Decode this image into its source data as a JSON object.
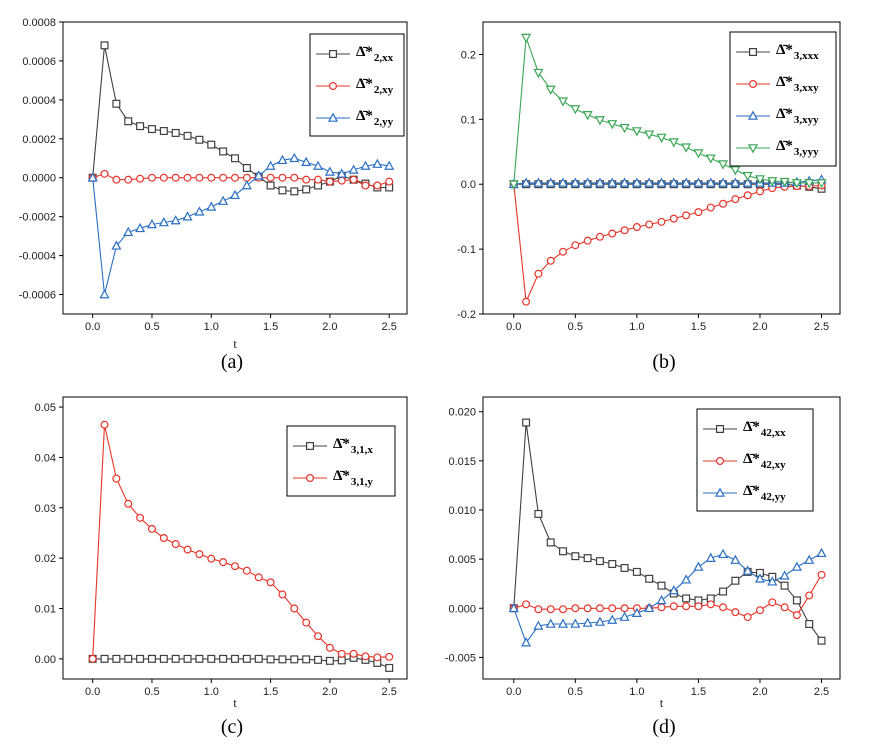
{
  "chart_data": [
    {
      "type": "line",
      "panel_label": "(a)",
      "xlabel": "t",
      "xlim": [
        -0.25,
        2.65
      ],
      "ylim": [
        -0.0007,
        0.0008
      ],
      "xticks": [
        "0.0",
        "0.5",
        "1.0",
        "1.5",
        "2.0",
        "2.5"
      ],
      "yticks": [
        "-0.0006",
        "-0.0004",
        "-0.0002",
        "0.0000",
        "0.0002",
        "0.0004",
        "0.0006",
        "0.0008"
      ],
      "ytick_values": [
        -0.0006,
        -0.0004,
        -0.0002,
        0,
        0.0002,
        0.0004,
        0.0006,
        0.0008
      ],
      "legend_position": "top-right",
      "x": [
        0,
        0.1,
        0.2,
        0.3,
        0.4,
        0.5,
        0.6,
        0.7,
        0.8,
        0.9,
        1.0,
        1.1,
        1.2,
        1.3,
        1.4,
        1.5,
        1.6,
        1.7,
        1.8,
        1.9,
        2.0,
        2.1,
        2.2,
        2.3,
        2.4,
        2.5
      ],
      "series": [
        {
          "name": "Δ̄*2,xx",
          "base": "Δ̄*",
          "sub": "2,xx",
          "color": "#404040",
          "marker": "square",
          "values": [
            0,
            0.00068,
            0.00038,
            0.00029,
            0.000265,
            0.00025,
            0.00024,
            0.00023,
            0.000215,
            0.000195,
            0.00017,
            0.000135,
            0.0001,
            5e-05,
            5e-06,
            -4e-05,
            -6.5e-05,
            -7e-05,
            -6e-05,
            -4e-05,
            -2e-05,
            1e-05,
            -1e-05,
            -3e-05,
            -5e-05,
            -5e-05
          ]
        },
        {
          "name": "Δ̄*2,xy",
          "base": "Δ̄*",
          "sub": "2,xy",
          "color": "#e8342a",
          "marker": "circle",
          "values": [
            0,
            2e-05,
            -1e-05,
            -1e-05,
            -5e-06,
            0,
            0,
            0,
            0,
            0,
            0,
            0,
            0,
            0,
            0,
            0,
            0,
            0,
            -1e-05,
            -1e-05,
            -2e-05,
            -1.5e-05,
            -1e-05,
            -4e-05,
            -4e-05,
            -2e-05
          ]
        },
        {
          "name": "Δ̄*2,yy",
          "base": "Δ̄*",
          "sub": "2,yy",
          "color": "#2a6fc4",
          "marker": "triangle",
          "values": [
            0,
            -0.0006,
            -0.00035,
            -0.00028,
            -0.00026,
            -0.00024,
            -0.00023,
            -0.00022,
            -0.0002,
            -0.000175,
            -0.00015,
            -0.00012,
            -9e-05,
            -4e-05,
            1e-05,
            6e-05,
            9e-05,
            0.0001,
            8e-05,
            6e-05,
            3e-05,
            2e-05,
            4e-05,
            6e-05,
            7e-05,
            6e-05
          ]
        }
      ]
    },
    {
      "type": "line",
      "panel_label": "(b)",
      "xlabel": "",
      "xlim": [
        -0.25,
        2.65
      ],
      "ylim": [
        -0.2,
        0.25
      ],
      "xticks": [
        "0.0",
        "0.5",
        "1.0",
        "1.5",
        "2.0",
        "2.5"
      ],
      "yticks": [
        "-0.2",
        "-0.1",
        "0.0",
        "0.1",
        "0.2"
      ],
      "ytick_values": [
        -0.2,
        -0.1,
        0,
        0.1,
        0.2
      ],
      "legend_position": "top-right",
      "x": [
        0,
        0.1,
        0.2,
        0.3,
        0.4,
        0.5,
        0.6,
        0.7,
        0.8,
        0.9,
        1.0,
        1.1,
        1.2,
        1.3,
        1.4,
        1.5,
        1.6,
        1.7,
        1.8,
        1.9,
        2.0,
        2.1,
        2.2,
        2.3,
        2.4,
        2.5
      ],
      "series": [
        {
          "name": "Δ̄*3,xxx",
          "base": "Δ̄*",
          "sub": "3,xxx",
          "color": "#404040",
          "marker": "square",
          "values": [
            0,
            0,
            0,
            0,
            0,
            0,
            0,
            0,
            0,
            0,
            0,
            0,
            0,
            0,
            0,
            0,
            0,
            0,
            0,
            0,
            0,
            0,
            0,
            -0.002,
            -0.004,
            -0.007
          ]
        },
        {
          "name": "Δ̄*3,xxy",
          "base": "Δ̄*",
          "sub": "3,xxy",
          "color": "#e8342a",
          "marker": "circle",
          "values": [
            0,
            -0.181,
            -0.138,
            -0.118,
            -0.104,
            -0.094,
            -0.087,
            -0.081,
            -0.076,
            -0.071,
            -0.066,
            -0.062,
            -0.058,
            -0.053,
            -0.048,
            -0.043,
            -0.036,
            -0.03,
            -0.023,
            -0.017,
            -0.011,
            -0.006,
            -0.004,
            -0.003,
            -0.003,
            -0.002
          ]
        },
        {
          "name": "Δ̄*3,xyy",
          "base": "Δ̄*",
          "sub": "3,xyy",
          "color": "#2a6fc4",
          "marker": "triangle",
          "values": [
            0,
            0.002,
            0.002,
            0.002,
            0.002,
            0.002,
            0.002,
            0.002,
            0.002,
            0.002,
            0.002,
            0.002,
            0.002,
            0.002,
            0.002,
            0.002,
            0.002,
            0.002,
            0.002,
            0.002,
            0.002,
            0.002,
            0.002,
            0.003,
            0.005,
            0.007
          ]
        },
        {
          "name": "Δ̄*3,yyy",
          "base": "Δ̄*",
          "sub": "3,yyy",
          "color": "#3aa655",
          "marker": "triangle-down",
          "values": [
            0,
            0.226,
            0.172,
            0.146,
            0.128,
            0.116,
            0.107,
            0.099,
            0.093,
            0.087,
            0.082,
            0.077,
            0.072,
            0.065,
            0.057,
            0.048,
            0.04,
            0.031,
            0.022,
            0.013,
            0.008,
            0.005,
            0.004,
            0.002,
            0.002,
            0.002
          ]
        }
      ]
    },
    {
      "type": "line",
      "panel_label": "(c)",
      "xlabel": "t",
      "xlim": [
        -0.25,
        2.65
      ],
      "ylim": [
        -0.004,
        0.052
      ],
      "xticks": [
        "0.0",
        "0.5",
        "1.0",
        "1.5",
        "2.0",
        "2.5"
      ],
      "yticks": [
        "0.00",
        "0.01",
        "0.02",
        "0.03",
        "0.04",
        "0.05"
      ],
      "ytick_values": [
        0,
        0.01,
        0.02,
        0.03,
        0.04,
        0.05
      ],
      "legend_position": "top-right",
      "x": [
        0,
        0.1,
        0.2,
        0.3,
        0.4,
        0.5,
        0.6,
        0.7,
        0.8,
        0.9,
        1.0,
        1.1,
        1.2,
        1.3,
        1.4,
        1.5,
        1.6,
        1.7,
        1.8,
        1.9,
        2.0,
        2.1,
        2.2,
        2.3,
        2.4,
        2.5
      ],
      "series": [
        {
          "name": "Δ̄*3,1,x",
          "base": "Δ̄*",
          "sub": "3,1,x",
          "color": "#404040",
          "marker": "square",
          "values": [
            0,
            0,
            0,
            0,
            0,
            0,
            0,
            0,
            0,
            0,
            0,
            0,
            0,
            0,
            0,
            -0.0001,
            -0.0001,
            -0.0001,
            -0.0001,
            -0.0002,
            -0.0004,
            -0.0003,
            0.0002,
            -0.0002,
            -0.0008,
            -0.0018
          ]
        },
        {
          "name": "Δ̄*3,1,y",
          "base": "Δ̄*",
          "sub": "3,1,y",
          "color": "#e8342a",
          "marker": "circle",
          "values": [
            0,
            0.0465,
            0.0358,
            0.0308,
            0.028,
            0.0258,
            0.024,
            0.0228,
            0.0217,
            0.0208,
            0.0199,
            0.0192,
            0.0184,
            0.0175,
            0.0162,
            0.0152,
            0.0128,
            0.01,
            0.0072,
            0.0045,
            0.0022,
            0.001,
            0.001,
            0.0005,
            0.0003,
            0.0004
          ]
        }
      ]
    },
    {
      "type": "line",
      "panel_label": "(d)",
      "xlabel": "t",
      "xlim": [
        -0.25,
        2.65
      ],
      "ylim": [
        -0.0072,
        0.0215
      ],
      "xticks": [
        "0.0",
        "0.5",
        "1.0",
        "1.5",
        "2.0",
        "2.5"
      ],
      "yticks": [
        "-0.005",
        "0.000",
        "0.005",
        "0.010",
        "0.015",
        "0.020"
      ],
      "ytick_values": [
        -0.005,
        0,
        0.005,
        0.01,
        0.015,
        0.02
      ],
      "legend_position": "top-right",
      "x": [
        0,
        0.1,
        0.2,
        0.3,
        0.4,
        0.5,
        0.6,
        0.7,
        0.8,
        0.9,
        1.0,
        1.1,
        1.2,
        1.3,
        1.4,
        1.5,
        1.6,
        1.7,
        1.8,
        1.9,
        2.0,
        2.1,
        2.2,
        2.3,
        2.4,
        2.5
      ],
      "series": [
        {
          "name": "Δ̄*42,xx",
          "base": "Δ̄*",
          "sub": "42,xx",
          "color": "#404040",
          "marker": "square",
          "values": [
            0,
            0.0189,
            0.0096,
            0.0067,
            0.0058,
            0.0053,
            0.0051,
            0.0048,
            0.0045,
            0.0041,
            0.0037,
            0.003,
            0.0023,
            0.0015,
            0.001,
            0.0008,
            0.001,
            0.0017,
            0.0028,
            0.0037,
            0.0036,
            0.0032,
            0.0023,
            0.0008,
            -0.0016,
            -0.0033
          ]
        },
        {
          "name": "Δ̄*42,xy",
          "base": "Δ̄*",
          "sub": "42,xy",
          "color": "#e8342a",
          "marker": "circle",
          "values": [
            0,
            0.0004,
            -0.0001,
            -0.0001,
            -0.0001,
            0,
            0,
            0,
            0,
            0,
            0,
            0,
            0.0001,
            0.0002,
            0.0002,
            0.0002,
            0.0004,
            0.0001,
            -0.0004,
            -0.0009,
            -0.0002,
            0.0006,
            0.0001,
            -0.0007,
            0.0013,
            0.0034
          ]
        },
        {
          "name": "Δ̄*42,yy",
          "base": "Δ̄*",
          "sub": "42,yy",
          "color": "#2a6fc4",
          "marker": "triangle",
          "values": [
            0,
            -0.0035,
            -0.0018,
            -0.0016,
            -0.0016,
            -0.0016,
            -0.0015,
            -0.0014,
            -0.0012,
            -0.0009,
            -0.0005,
            0,
            0.0008,
            0.0018,
            0.0029,
            0.0042,
            0.0051,
            0.0055,
            0.0049,
            0.0038,
            0.003,
            0.0027,
            0.0033,
            0.0042,
            0.0049,
            0.0056
          ]
        }
      ]
    }
  ]
}
